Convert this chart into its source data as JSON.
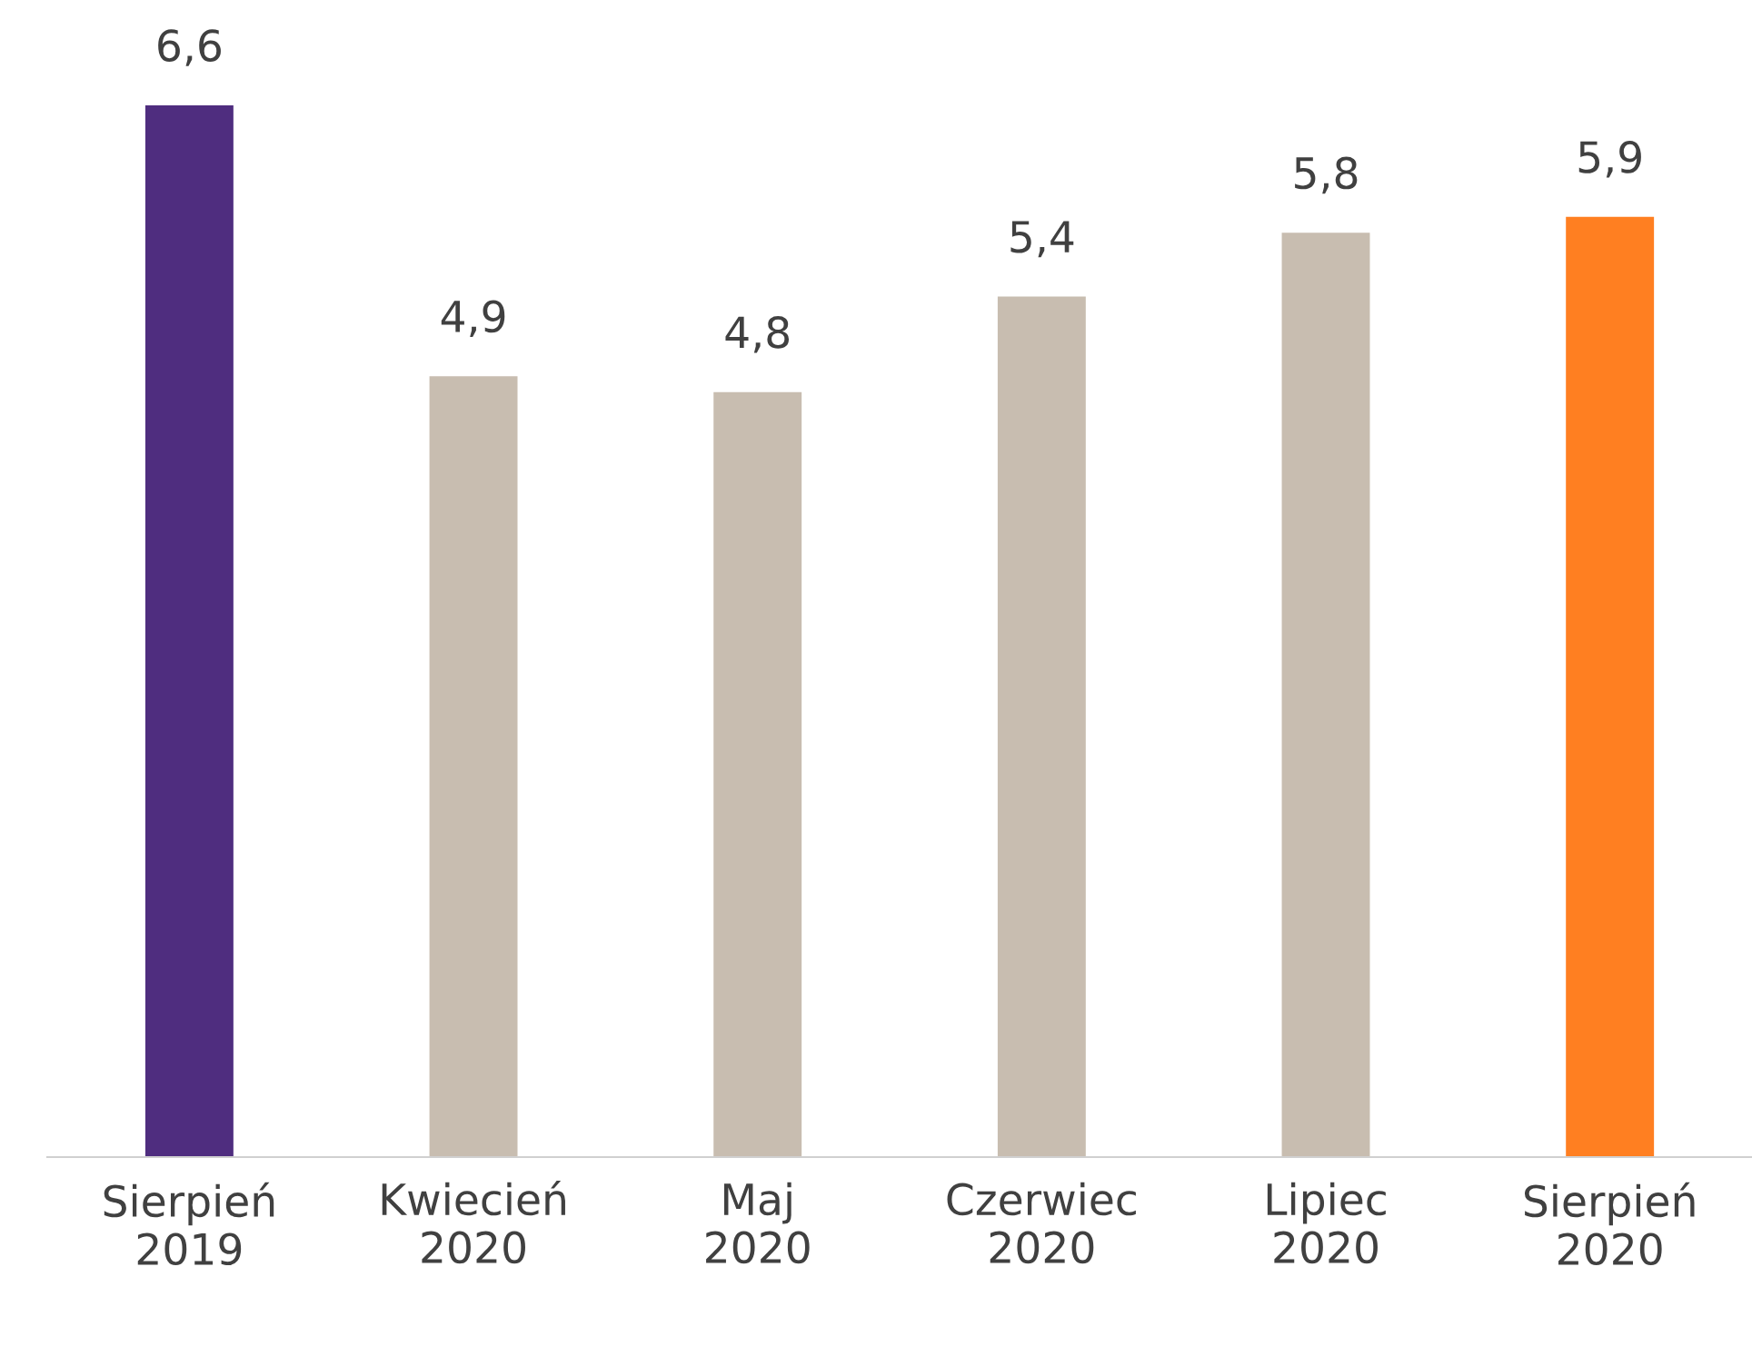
{
  "chart_data": {
    "type": "bar",
    "categories": [
      "Sierpień\n2019",
      "Kwiecień\n2020",
      "Maj\n2020",
      "Czerwiec\n2020",
      "Lipiec\n2020",
      "Sierpień\n2020"
    ],
    "values": [
      6.6,
      4.9,
      4.8,
      5.4,
      5.8,
      5.9
    ],
    "value_labels": [
      "6,6",
      "4,9",
      "4,8",
      "5,4",
      "5,8",
      "5,9"
    ],
    "colors": [
      "#4f2d7f",
      "#c8bdb0",
      "#c8bdb0",
      "#c8bdb0",
      "#c8bdb0",
      "#ff7f21"
    ],
    "grid": false,
    "legend": false,
    "tick_labels": "x"
  }
}
